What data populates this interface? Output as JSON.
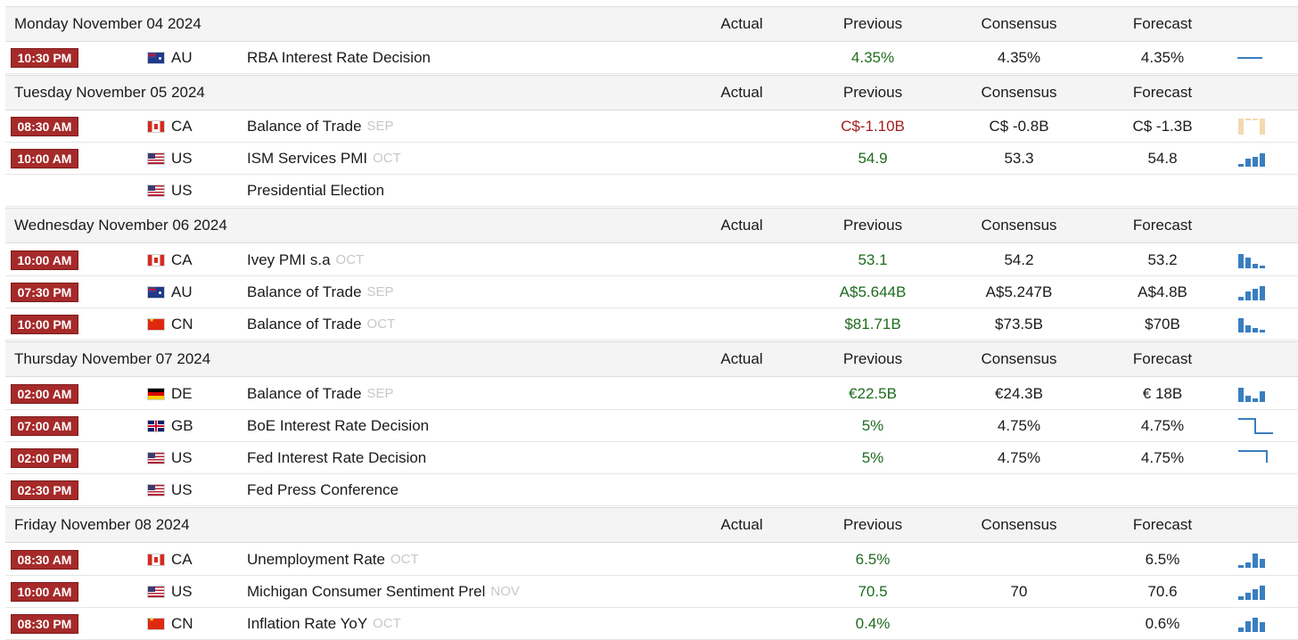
{
  "columns": {
    "actual": "Actual",
    "previous": "Previous",
    "consensus": "Consensus",
    "forecast": "Forecast"
  },
  "colors": {
    "time_badge": "#a62a2a",
    "positive": "#1e6b1e",
    "negative": "#a01e1e",
    "spark_blue": "#3a7ebf",
    "spark_tan": "#f2d9b0"
  },
  "days": [
    {
      "date": "Monday November 04 2024"
    },
    {
      "date": "Tuesday November 05 2024"
    },
    {
      "date": "Wednesday November 06 2024"
    },
    {
      "date": "Thursday November 07 2024"
    },
    {
      "date": "Friday November 08 2024"
    }
  ],
  "events": [
    {
      "time": "10:30 PM",
      "country": "AU",
      "flag": "au-flag-icon",
      "name": "RBA Interest Rate Decision",
      "ref": "",
      "previous": "4.35%",
      "consensus": "4.35%",
      "forecast": "4.35%",
      "spark_icon": "flat-line-icon"
    },
    {
      "time": "08:30 AM",
      "country": "CA",
      "flag": "ca-flag-icon",
      "name": "Balance of Trade",
      "ref": "SEP",
      "previous": "C$-1.10B",
      "consensus": "C$ -0.8B",
      "forecast": "C$ -1.3B",
      "spark_icon": "negative-bars-icon"
    },
    {
      "time": "10:00 AM",
      "country": "US",
      "flag": "us-flag-icon",
      "name": "ISM Services PMI",
      "ref": "OCT",
      "previous": "54.9",
      "consensus": "53.3",
      "forecast": "54.8",
      "spark_icon": "rising-bars-icon"
    },
    {
      "time": "",
      "country": "US",
      "flag": "us-flag-icon",
      "name": "Presidential Election",
      "ref": "",
      "previous": "",
      "consensus": "",
      "forecast": "",
      "spark_icon": ""
    },
    {
      "time": "10:00 AM",
      "country": "CA",
      "flag": "ca-flag-icon",
      "name": "Ivey PMI s.a",
      "ref": "OCT",
      "previous": "53.1",
      "consensus": "54.2",
      "forecast": "53.2",
      "spark_icon": "falling-bars-icon"
    },
    {
      "time": "07:30 PM",
      "country": "AU",
      "flag": "au-flag-icon",
      "name": "Balance of Trade",
      "ref": "SEP",
      "previous": "A$5.644B",
      "consensus": "A$5.247B",
      "forecast": "A$4.8B",
      "spark_icon": "rising-bars-icon"
    },
    {
      "time": "10:00 PM",
      "country": "CN",
      "flag": "cn-flag-icon",
      "name": "Balance of Trade",
      "ref": "OCT",
      "previous": "$81.71B",
      "consensus": "$73.5B",
      "forecast": "$70B",
      "spark_icon": "falling-bars-icon"
    },
    {
      "time": "02:00 AM",
      "country": "DE",
      "flag": "de-flag-icon",
      "name": "Balance of Trade",
      "ref": "SEP",
      "previous": "€22.5B",
      "consensus": "€24.3B",
      "forecast": "€ 18B",
      "spark_icon": "mixed-bars-icon"
    },
    {
      "time": "07:00 AM",
      "country": "GB",
      "flag": "gb-flag-icon",
      "name": "BoE Interest Rate Decision",
      "ref": "",
      "previous": "5%",
      "consensus": "4.75%",
      "forecast": "4.75%",
      "spark_icon": "step-down-line-icon"
    },
    {
      "time": "02:00 PM",
      "country": "US",
      "flag": "us-flag-icon",
      "name": "Fed Interest Rate Decision",
      "ref": "",
      "previous": "5%",
      "consensus": "4.75%",
      "forecast": "4.75%",
      "spark_icon": "step-down-line-icon"
    },
    {
      "time": "02:30 PM",
      "country": "US",
      "flag": "us-flag-icon",
      "name": "Fed Press Conference",
      "ref": "",
      "previous": "",
      "consensus": "",
      "forecast": "",
      "spark_icon": ""
    },
    {
      "time": "08:30 AM",
      "country": "CA",
      "flag": "ca-flag-icon",
      "name": "Unemployment Rate",
      "ref": "OCT",
      "previous": "6.5%",
      "consensus": "",
      "forecast": "6.5%",
      "spark_icon": "rising-bars-icon"
    },
    {
      "time": "10:00 AM",
      "country": "US",
      "flag": "us-flag-icon",
      "name": "Michigan Consumer Sentiment Prel",
      "ref": "NOV",
      "previous": "70.5",
      "consensus": "70",
      "forecast": "70.6",
      "spark_icon": "rising-bars-icon"
    },
    {
      "time": "08:30 PM",
      "country": "CN",
      "flag": "cn-flag-icon",
      "name": "Inflation Rate YoY",
      "ref": "OCT",
      "previous": "0.4%",
      "consensus": "",
      "forecast": "0.6%",
      "spark_icon": "rising-bars-icon"
    }
  ]
}
